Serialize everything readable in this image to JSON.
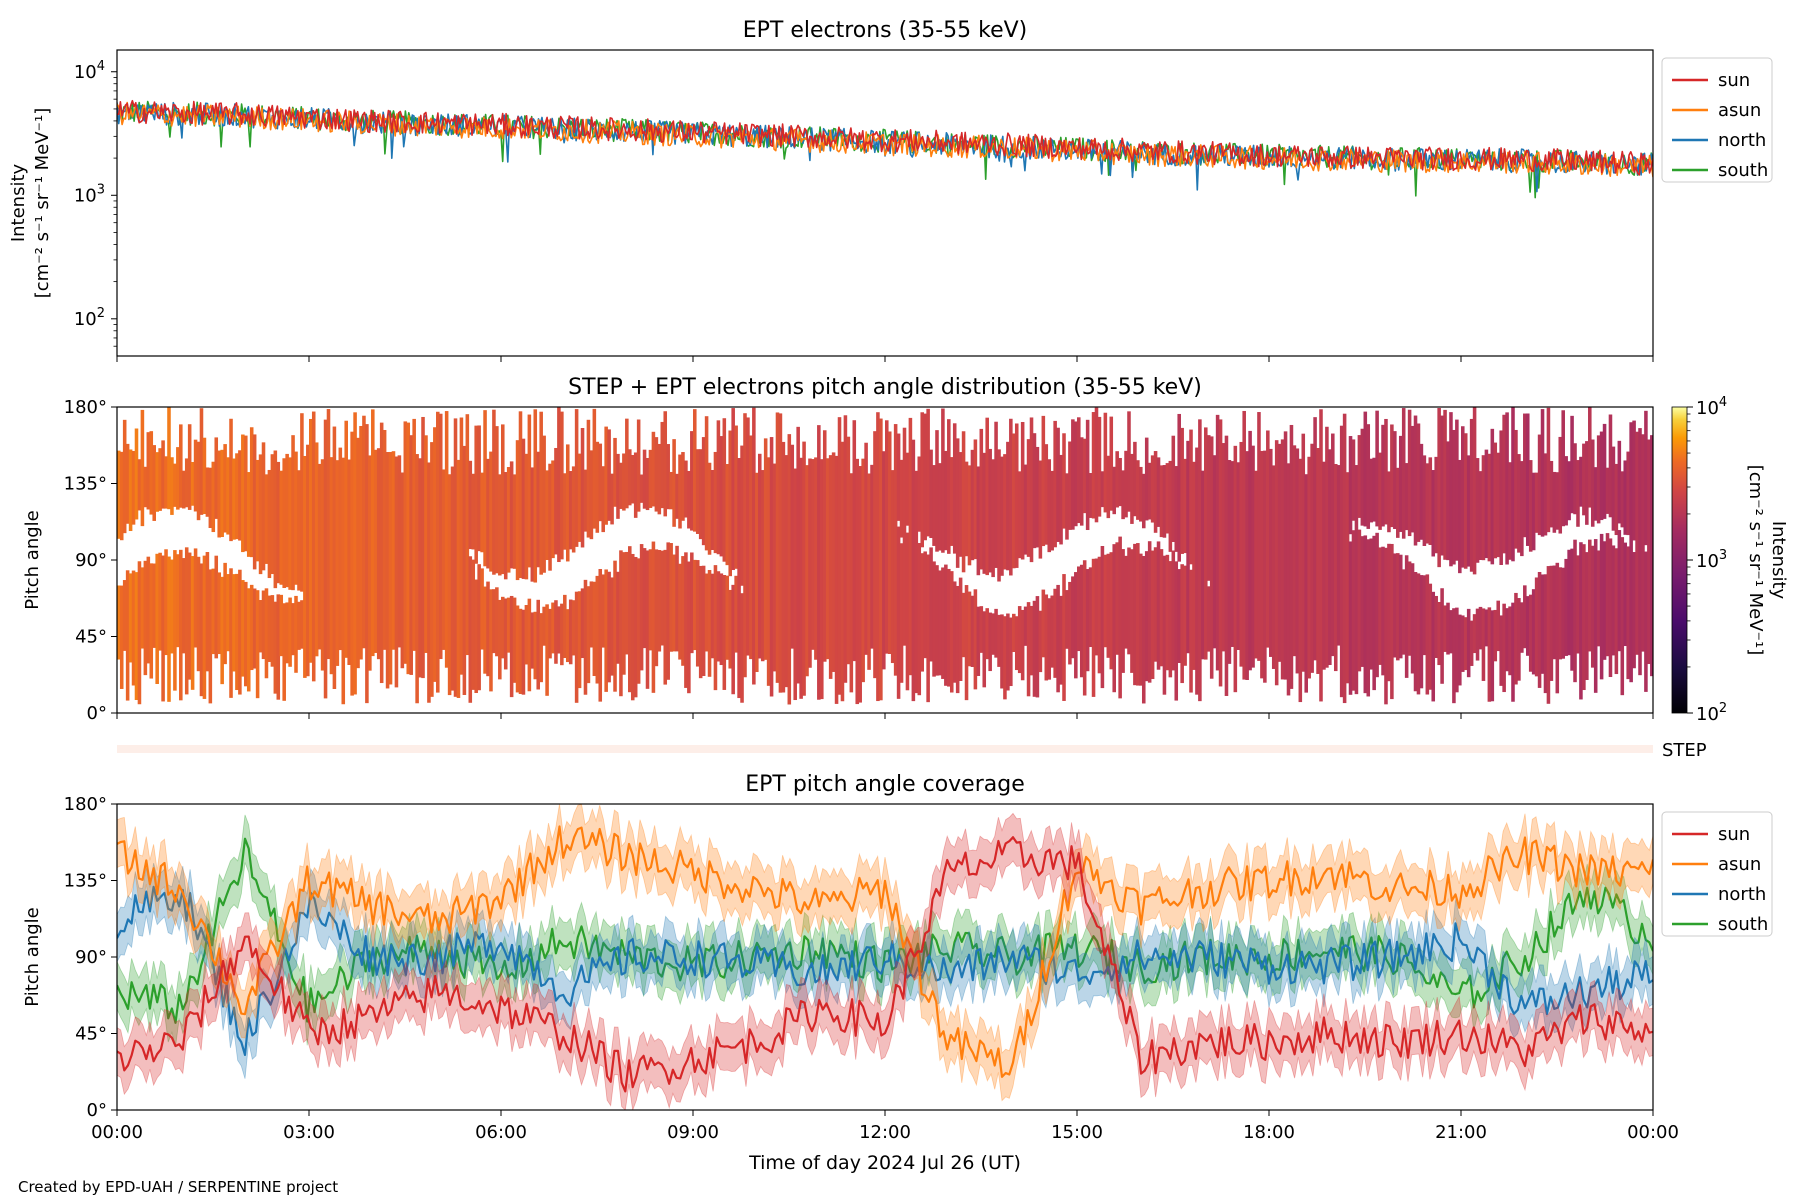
{
  "footer": "Created by EPD-UAH / SERPENTINE project",
  "xaxis_label": "Time of day 2024 Jul 26 (UT)",
  "x_ticks": [
    "00:00",
    "03:00",
    "06:00",
    "09:00",
    "12:00",
    "15:00",
    "18:00",
    "21:00",
    "00:00"
  ],
  "colors": {
    "sun": "#d62728",
    "asun": "#ff7f0e",
    "north": "#1f77b4",
    "south": "#2ca02c"
  },
  "chart_data": [
    {
      "type": "line",
      "title": "EPT electrons (35-55 keV)",
      "ylabel_line1": "Intensity",
      "ylabel_line2": "[cm⁻² s⁻¹ sr⁻¹ MeV⁻¹]",
      "yscale": "log",
      "ylim": [
        50,
        15000
      ],
      "y_tick_labels": [
        {
          "base": "10",
          "exp": "2"
        },
        {
          "base": "10",
          "exp": "3"
        },
        {
          "base": "10",
          "exp": "4"
        }
      ],
      "xlim_hours": [
        0,
        24
      ],
      "legend": [
        "sun",
        "asun",
        "north",
        "south"
      ],
      "legend_position": "outside-right-top",
      "series": [
        {
          "name": "sun",
          "x_hours": [
            0,
            2,
            4,
            6,
            8,
            10,
            12,
            14,
            16,
            18,
            20,
            22,
            24
          ],
          "values": [
            4800,
            4500,
            4000,
            3700,
            3400,
            3100,
            2800,
            2550,
            2300,
            2100,
            2000,
            1950,
            1800
          ]
        },
        {
          "name": "asun",
          "x_hours": [
            0,
            2,
            4,
            6,
            8,
            10,
            12,
            14,
            16,
            18,
            20,
            22,
            24
          ],
          "values": [
            4600,
            4300,
            3800,
            3500,
            3200,
            2900,
            2600,
            2400,
            2150,
            2000,
            1900,
            1850,
            1700
          ]
        },
        {
          "name": "north",
          "x_hours": [
            0,
            2,
            4,
            6,
            8,
            10,
            12,
            14,
            16,
            18,
            20,
            22,
            24
          ],
          "values": [
            4700,
            4400,
            3900,
            3600,
            3300,
            3000,
            2700,
            2450,
            2200,
            2050,
            1950,
            1900,
            1750
          ]
        },
        {
          "name": "south",
          "x_hours": [
            0,
            2,
            4,
            6,
            8,
            10,
            12,
            14,
            16,
            18,
            20,
            22,
            24
          ],
          "values": [
            4750,
            4450,
            3950,
            3650,
            3350,
            3050,
            2750,
            2500,
            2250,
            2080,
            1980,
            1920,
            1780
          ]
        }
      ]
    },
    {
      "type": "heatmap",
      "title": "STEP + EPT electrons pitch angle distribution (35-55 keV)",
      "ylabel": "Pitch angle",
      "ylim": [
        0,
        180
      ],
      "y_ticks": [
        "0°",
        "45°",
        "90°",
        "135°",
        "180°"
      ],
      "xlim_hours": [
        0,
        24
      ],
      "colorbar": {
        "scale": "log",
        "range": [
          100,
          10000
        ],
        "tick_labels": [
          {
            "base": "10",
            "exp": "2"
          },
          {
            "base": "10",
            "exp": "3"
          },
          {
            "base": "10",
            "exp": "4"
          }
        ],
        "label_line1": "Intensity",
        "label_line2": "[cm⁻² s⁻¹ sr⁻¹ MeV⁻¹]",
        "colormap": "inferno"
      },
      "approx_intensity_vs_time": {
        "x_hours": [
          0,
          6,
          12,
          18,
          24
        ],
        "values": [
          4500,
          3600,
          2800,
          2100,
          1800
        ]
      }
    },
    {
      "type": "bar",
      "label": "STEP",
      "note": "very faint strip"
    },
    {
      "type": "line",
      "title": "EPT pitch angle coverage",
      "ylabel": "Pitch angle",
      "ylim": [
        0,
        180
      ],
      "y_ticks": [
        "0°",
        "45°",
        "90°",
        "135°",
        "180°"
      ],
      "xlim_hours": [
        0,
        24
      ],
      "legend": [
        "sun",
        "asun",
        "north",
        "south"
      ],
      "legend_position": "outside-right-top",
      "shaded_bands": true,
      "series": [
        {
          "name": "sun",
          "x_hours": [
            0,
            1,
            2,
            3,
            4,
            5,
            6,
            7,
            8,
            9,
            10,
            11,
            12,
            13,
            14,
            15,
            16,
            17,
            18,
            19,
            20,
            21,
            22,
            23,
            24
          ],
          "values": [
            30,
            40,
            100,
            45,
            55,
            70,
            60,
            45,
            20,
            30,
            40,
            60,
            50,
            140,
            150,
            145,
            30,
            40,
            40,
            45,
            40,
            45,
            35,
            55,
            45
          ]
        },
        {
          "name": "asun",
          "x_hours": [
            0,
            1,
            2,
            3,
            4,
            5,
            6,
            7,
            8,
            9,
            10,
            11,
            12,
            13,
            14,
            15,
            16,
            17,
            18,
            19,
            20,
            21,
            22,
            23,
            24
          ],
          "values": [
            150,
            130,
            60,
            135,
            120,
            110,
            125,
            160,
            150,
            140,
            130,
            120,
            130,
            40,
            25,
            145,
            120,
            130,
            135,
            140,
            130,
            130,
            150,
            140,
            140
          ]
        },
        {
          "name": "north",
          "x_hours": [
            0,
            1,
            2,
            3,
            4,
            5,
            6,
            7,
            8,
            9,
            10,
            11,
            12,
            13,
            14,
            15,
            16,
            17,
            18,
            19,
            20,
            21,
            22,
            23,
            24
          ],
          "values": [
            110,
            130,
            40,
            120,
            90,
            90,
            100,
            70,
            90,
            90,
            85,
            80,
            90,
            80,
            90,
            80,
            90,
            90,
            85,
            85,
            90,
            100,
            60,
            70,
            80
          ]
        },
        {
          "name": "south",
          "x_hours": [
            0,
            1,
            2,
            3,
            4,
            5,
            6,
            7,
            8,
            9,
            10,
            11,
            12,
            13,
            14,
            15,
            16,
            17,
            18,
            19,
            20,
            21,
            22,
            23,
            24
          ],
          "values": [
            70,
            60,
            150,
            60,
            90,
            95,
            80,
            100,
            90,
            85,
            90,
            95,
            85,
            95,
            90,
            95,
            85,
            90,
            90,
            95,
            90,
            65,
            90,
            130,
            100
          ]
        }
      ]
    }
  ]
}
